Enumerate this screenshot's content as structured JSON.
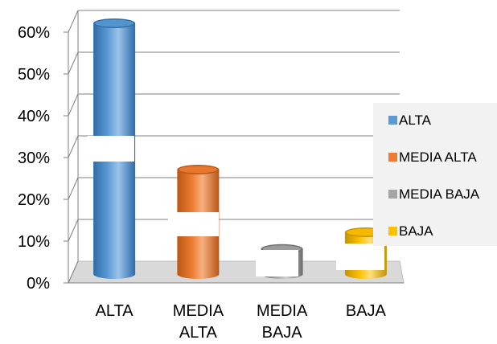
{
  "chart_data": {
    "type": "bar",
    "style": "3d-cylinder",
    "categories": [
      [
        "ALTA"
      ],
      [
        "MEDIA",
        "ALTA"
      ],
      [
        "MEDIA",
        "BAJA"
      ],
      [
        "BAJA"
      ]
    ],
    "values": [
      60,
      25,
      6,
      10
    ],
    "value_unit": "%",
    "y_ticks": [
      "0%",
      "10%",
      "20%",
      "30%",
      "40%",
      "50%",
      "60%"
    ],
    "ylim": [
      0,
      60
    ],
    "grid": true,
    "legend_position": "right",
    "legend": [
      {
        "label": "ALTA",
        "color": "#5b9bd5"
      },
      {
        "label": "MEDIA ALTA",
        "color": "#ed7d31"
      },
      {
        "label": "MEDIA BAJA",
        "color": "#a5a5a5"
      },
      {
        "label": "BAJA",
        "color": "#ffc000"
      }
    ],
    "colors": [
      "#5b9bd5",
      "#ed7d31",
      "#a5a5a5",
      "#ffc000"
    ],
    "dark_colors": [
      "#2e6da8",
      "#b85716",
      "#6e6e6e",
      "#c49400"
    ],
    "light_colors": [
      "#9cc3ea",
      "#f6b07f",
      "#cfcfcf",
      "#ffe07a"
    ],
    "floor_color": "#d9d9d9",
    "legend_bg": "#f2f2f2"
  }
}
